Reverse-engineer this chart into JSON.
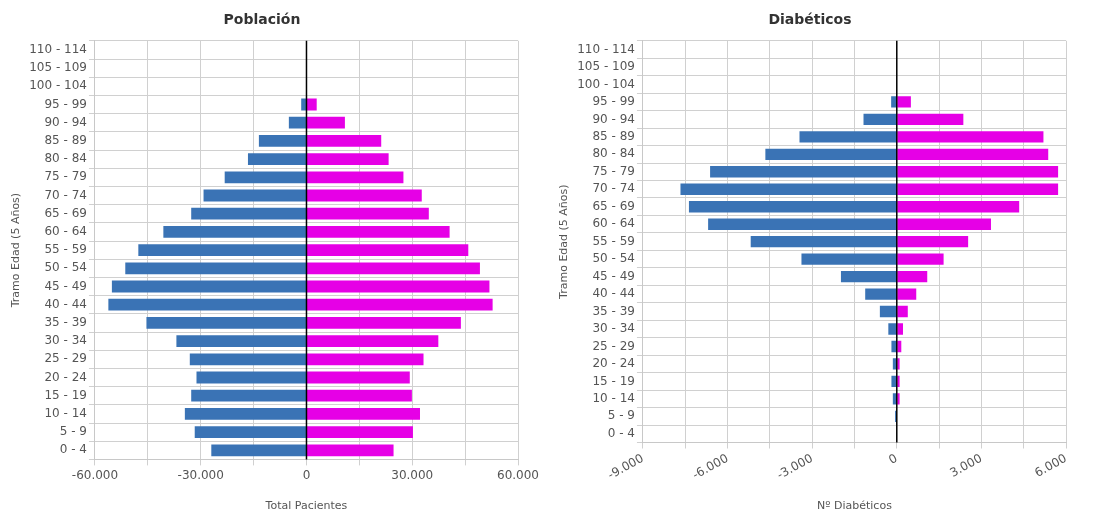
{
  "chart_data": [
    {
      "type": "bar",
      "orientation": "horizontal",
      "stacked": true,
      "title": "Población",
      "xlabel": "Total Pacientes",
      "ylabel": "Tramo Edad (5 Años)",
      "categories": [
        "110 - 114",
        "105 - 109",
        "100 - 104",
        "95 - 99",
        "90 - 94",
        "85 - 89",
        "80 - 84",
        "75 - 79",
        "70 - 74",
        "65 - 69",
        "60 - 64",
        "55 - 59",
        "50 - 54",
        "45 - 49",
        "40 - 44",
        "35 - 39",
        "30 - 34",
        "25 - 29",
        "20 - 24",
        "15 - 19",
        "10 - 14",
        "5 - 9",
        "0 - 4"
      ],
      "series": [
        {
          "color": "#3a73b5",
          "values": [
            null,
            null,
            null,
            -1500,
            -5000,
            -13500,
            -16600,
            -23200,
            -29200,
            -32700,
            -40600,
            -47700,
            -51400,
            -55200,
            -56200,
            -45400,
            -36900,
            -33100,
            -31200,
            -32700,
            -34500,
            -31700,
            -27000
          ]
        },
        {
          "color": "#e600e6",
          "values": [
            null,
            null,
            null,
            2900,
            10900,
            21200,
            23300,
            27500,
            32700,
            34700,
            40600,
            45900,
            49200,
            51900,
            52800,
            43800,
            37400,
            33200,
            29300,
            29900,
            32200,
            30200,
            24700
          ]
        }
      ],
      "xlim": [
        -60000,
        60000
      ],
      "xticks": [
        {
          "value": -60000,
          "label": "-60.000"
        },
        {
          "value": -45000,
          "label": null
        },
        {
          "value": -30000,
          "label": "-30.000"
        },
        {
          "value": -15000,
          "label": null
        },
        0,
        {
          "value": 15000,
          "label": null
        },
        {
          "value": 30000,
          "label": "30.000"
        },
        {
          "value": 45000,
          "label": null
        },
        {
          "value": 60000,
          "label": "60.000"
        }
      ],
      "ref_lines": [
        {
          "axis": "x",
          "value": 0,
          "color": "#000000"
        }
      ],
      "grid": true,
      "legend": false
    },
    {
      "type": "bar",
      "orientation": "horizontal",
      "stacked": true,
      "title": "Diabéticos",
      "xlabel": "Nº Diabéticos",
      "ylabel": "Tramo Edad (5 Años)",
      "categories": [
        "110 - 114",
        "105 - 109",
        "100 - 104",
        "95 - 99",
        "90 - 94",
        "85 - 89",
        "80 - 84",
        "75 - 79",
        "70 - 74",
        "65 - 69",
        "60 - 64",
        "55 - 59",
        "50 - 54",
        "45 - 49",
        "40 - 44",
        "35 - 39",
        "30 - 34",
        "25 - 29",
        "20 - 24",
        "15 - 19",
        "10 - 14",
        "5 - 9",
        "0 - 4"
      ],
      "series": [
        {
          "color": "#3a73b5",
          "values": [
            null,
            null,
            null,
            -200,
            -1180,
            -3450,
            -4660,
            -6620,
            -7670,
            -7370,
            -6690,
            -5180,
            -3380,
            -1980,
            -1120,
            -600,
            -300,
            -190,
            -140,
            -190,
            -140,
            -60,
            null
          ]
        },
        {
          "color": "#e600e6",
          "values": [
            null,
            null,
            null,
            500,
            2360,
            5200,
            5370,
            5720,
            5720,
            4340,
            3340,
            2530,
            1660,
            1080,
            690,
            390,
            220,
            160,
            100,
            100,
            100,
            null,
            null
          ]
        }
      ],
      "xlim": [
        -9000,
        6000
      ],
      "xticks": [
        {
          "value": -9000,
          "label": "-9.000"
        },
        {
          "value": -7500,
          "label": null
        },
        {
          "value": -6000,
          "label": "-6.000"
        },
        {
          "value": -4500,
          "label": null
        },
        {
          "value": -3000,
          "label": "-3.000"
        },
        {
          "value": -1500,
          "label": null
        },
        0,
        {
          "value": 1500,
          "label": null
        },
        {
          "value": 3000,
          "label": "3.000"
        },
        {
          "value": 4500,
          "label": null
        },
        {
          "value": 6000,
          "label": "6.000"
        }
      ],
      "ref_lines": [
        {
          "axis": "x",
          "value": 0,
          "color": "#000000"
        }
      ],
      "grid": true,
      "legend": false
    }
  ]
}
